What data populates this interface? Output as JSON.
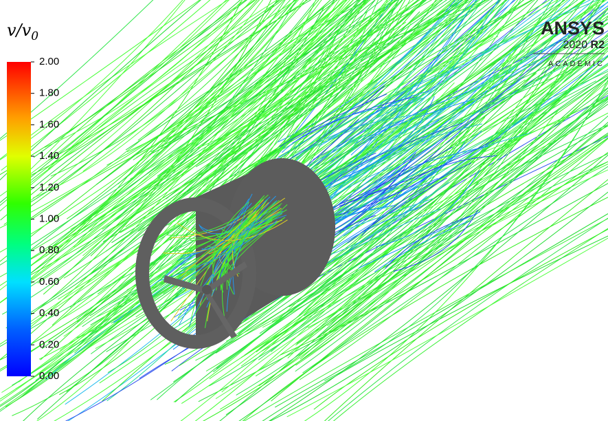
{
  "legend": {
    "title": {
      "main": "v/v",
      "subscript": "0"
    },
    "range": [
      0,
      2
    ],
    "ticks": [
      {
        "value": 2,
        "label": "2.00"
      },
      {
        "value": 1.8,
        "label": "1.80"
      },
      {
        "value": 1.6,
        "label": "1.60"
      },
      {
        "value": 1.4,
        "label": "1.40"
      },
      {
        "value": 1.2,
        "label": "1.20"
      },
      {
        "value": 1,
        "label": "1.00"
      },
      {
        "value": 0.8,
        "label": "0.80"
      },
      {
        "value": 0.6,
        "label": "0.60"
      },
      {
        "value": 0.4,
        "label": "0.40"
      },
      {
        "value": 0.2,
        "label": "0.20"
      },
      {
        "value": 0,
        "label": "0.00"
      }
    ]
  },
  "logo": {
    "brand": "ANSYS",
    "year": "2020",
    "release": "R2",
    "edition": "ACADEMIC"
  }
}
